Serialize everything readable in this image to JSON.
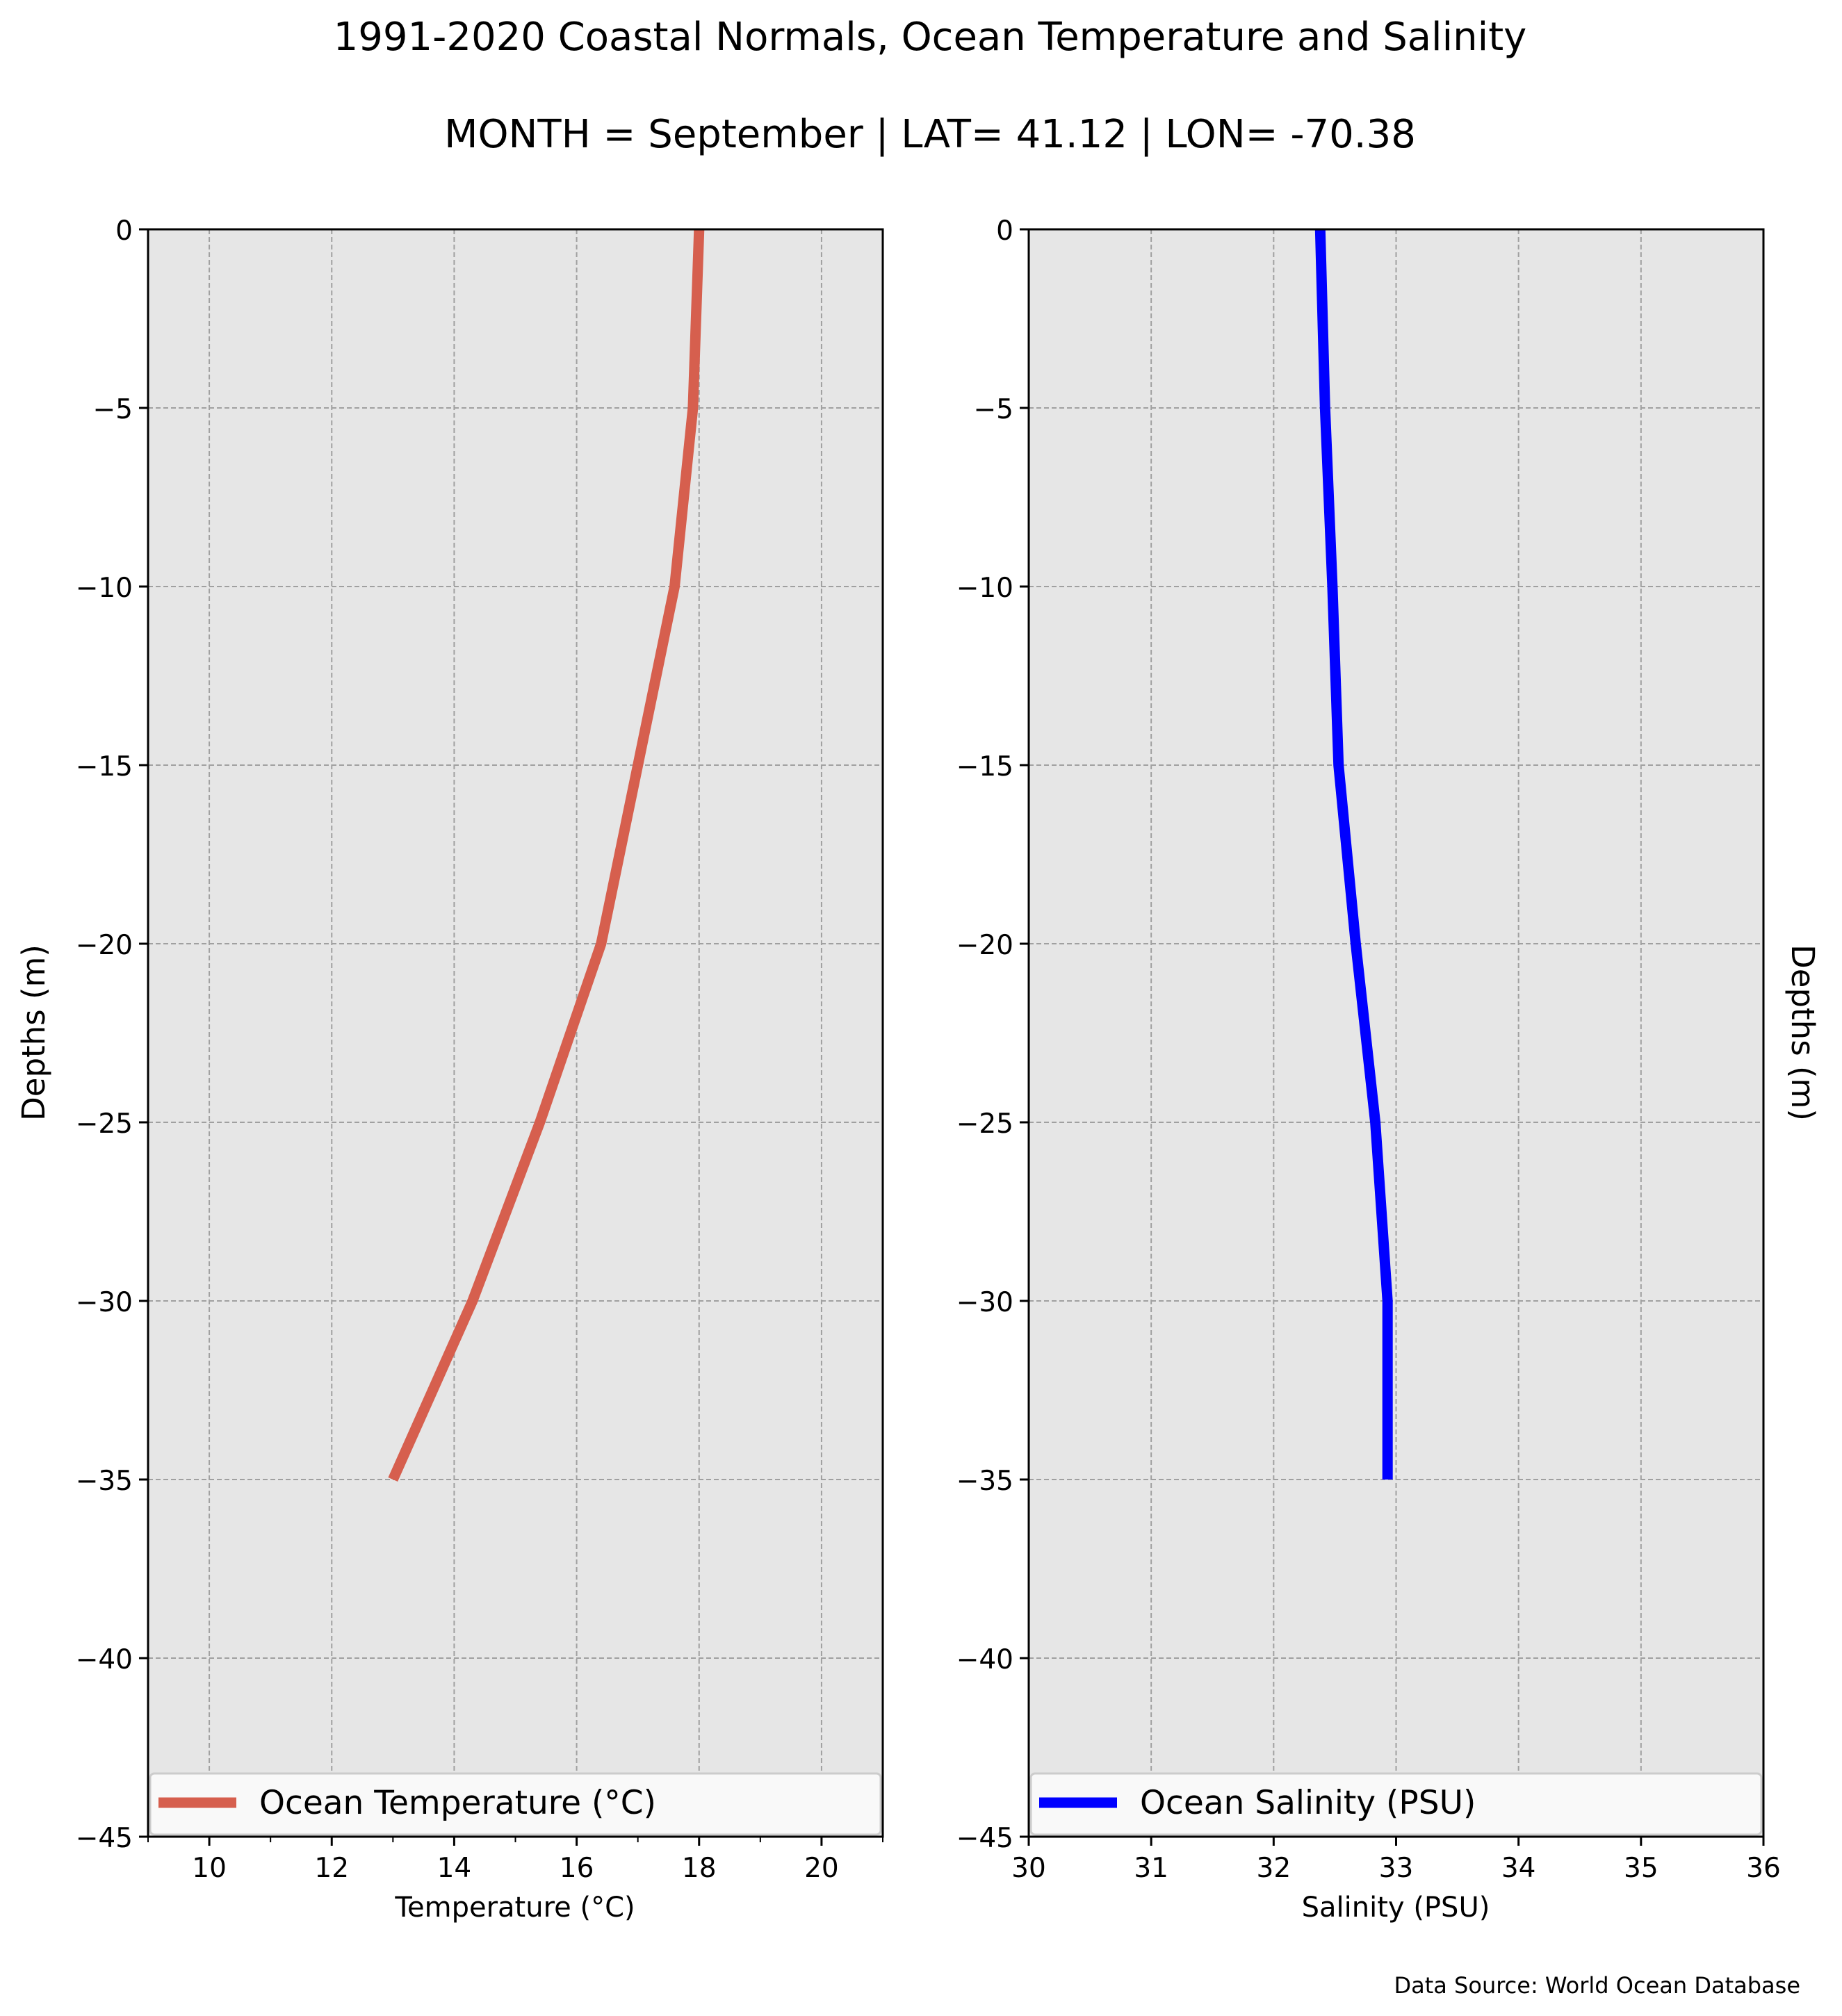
{
  "figure": {
    "title": "1991-2020 Coastal Normals, Ocean Temperature and Salinity",
    "subtitle": "MONTH = September | LAT= 41.12 | LON= -70.38",
    "source_note": "Data Source: World Ocean Database"
  },
  "colors": {
    "background": "#ffffff",
    "plot_bg": "#e6e6e6",
    "grid": "#a0a0a0",
    "temperature": "#d65f4e",
    "salinity": "#0000ff"
  },
  "chart_data": [
    {
      "type": "line",
      "id": "temperature",
      "xlabel": "Temperature ($^\\circ$C)",
      "xlabel_display": "Temperature (°C)",
      "ylabel": "Depths (m)",
      "xlim": [
        9,
        21
      ],
      "ylim": [
        -45,
        0
      ],
      "xticks": [
        10,
        12,
        14,
        16,
        18,
        20
      ],
      "xtick_labels": [
        "10",
        "12",
        "14",
        "16",
        "18",
        "20"
      ],
      "minor_xticks": [
        9,
        11,
        13,
        15,
        17,
        19,
        21
      ],
      "yticks": [
        0,
        -5,
        -10,
        -15,
        -20,
        -25,
        -30,
        -35,
        -40,
        -45
      ],
      "ytick_labels": [
        "0",
        "−5",
        "−10",
        "−15",
        "−20",
        "−25",
        "−30",
        "−35",
        "−40",
        "−45"
      ],
      "grid": true,
      "legend_position": "bottom",
      "series": [
        {
          "name": "Ocean Temperature (°C)",
          "color": "#d65f4e",
          "x": [
            18.0,
            17.9,
            17.6,
            17.0,
            16.4,
            15.4,
            14.3,
            13.0
          ],
          "y": [
            0,
            -5,
            -10,
            -15,
            -20,
            -25,
            -30,
            -35
          ]
        }
      ]
    },
    {
      "type": "line",
      "id": "salinity",
      "xlabel": "Salinity (PSU)",
      "ylabel": "Depths (m)",
      "xlim": [
        30,
        36
      ],
      "ylim": [
        -45,
        0
      ],
      "xticks": [
        30,
        31,
        32,
        33,
        34,
        35,
        36
      ],
      "xtick_labels": [
        "30",
        "31",
        "32",
        "33",
        "34",
        "35",
        "36"
      ],
      "yticks": [
        0,
        -5,
        -10,
        -15,
        -20,
        -25,
        -30,
        -35,
        -40,
        -45
      ],
      "ytick_labels": [
        "0",
        "−5",
        "−10",
        "−15",
        "−20",
        "−25",
        "−30",
        "−35",
        "−40",
        "−45"
      ],
      "grid": true,
      "legend_position": "bottom",
      "series": [
        {
          "name": "Ocean Salinity (PSU)",
          "color": "#0000ff",
          "x": [
            32.38,
            32.42,
            32.48,
            32.53,
            32.67,
            32.83,
            32.93,
            32.93
          ],
          "y": [
            0,
            -5,
            -10,
            -15,
            -20,
            -25,
            -30,
            -35
          ]
        }
      ]
    }
  ]
}
